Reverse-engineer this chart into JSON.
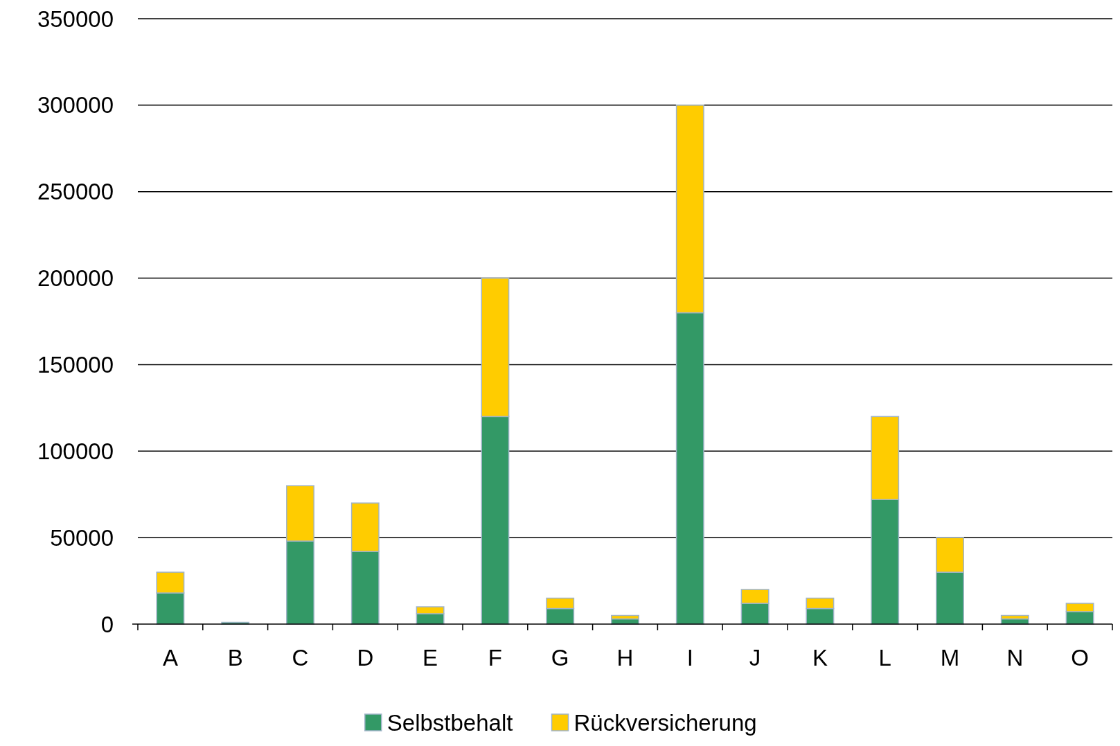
{
  "chart_data": {
    "type": "bar",
    "stacked": true,
    "categories": [
      "A",
      "B",
      "C",
      "D",
      "E",
      "F",
      "G",
      "H",
      "I",
      "J",
      "K",
      "L",
      "M",
      "N",
      "O"
    ],
    "series": [
      {
        "name": "Selbstbehalt",
        "color": "#339966",
        "values": [
          18000,
          1000,
          48000,
          42000,
          6000,
          120000,
          9000,
          3000,
          180000,
          12000,
          9000,
          72000,
          30000,
          3000,
          7200
        ]
      },
      {
        "name": "Rückversicherung",
        "color": "#ffcc00",
        "values": [
          12000,
          null,
          32000,
          28000,
          4000,
          80000,
          6000,
          2000,
          120000,
          8000,
          6000,
          48000,
          20000,
          2000,
          4800
        ]
      }
    ],
    "ylim": [
      0,
      350000
    ],
    "yticks": [
      0,
      50000,
      100000,
      150000,
      200000,
      250000,
      300000,
      350000
    ],
    "grid": "y",
    "legend": "bottom"
  }
}
